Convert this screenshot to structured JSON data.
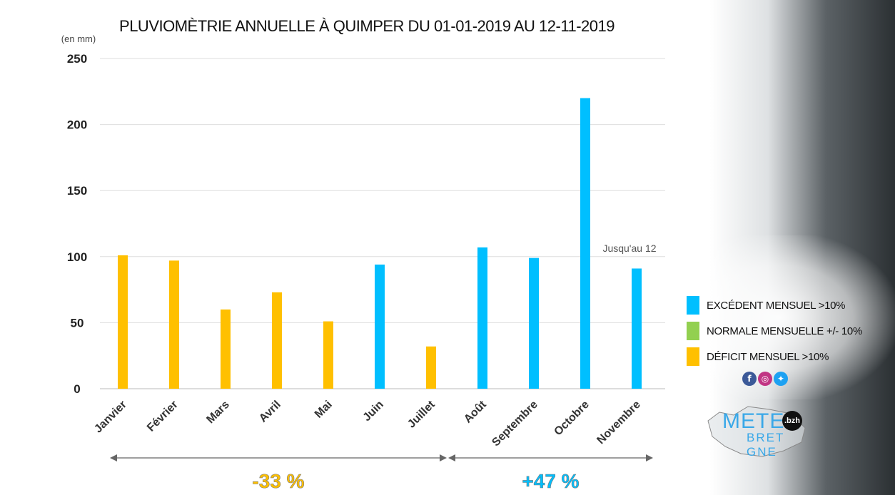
{
  "chart_data": {
    "type": "bar",
    "title": "PLUVIOMÈTRIE ANNUELLE À QUIMPER DU 01-01-2019 AU 12-11-2019",
    "unit_label": "(en mm)",
    "ylim": [
      0,
      250
    ],
    "yticks": [
      0,
      50,
      100,
      150,
      200,
      250
    ],
    "grid": true,
    "categories": [
      "Janvier",
      "Février",
      "Mars",
      "Avril",
      "Mai",
      "Juin",
      "Juillet",
      "Août",
      "Septembre",
      "Octobre",
      "Novembre"
    ],
    "values": [
      101,
      97,
      60,
      73,
      51,
      94,
      32,
      107,
      99,
      220,
      91
    ],
    "bar_classes": [
      "deficit",
      "deficit",
      "deficit",
      "deficit",
      "deficit",
      "excedent",
      "deficit",
      "excedent",
      "excedent",
      "excedent",
      "excedent"
    ],
    "annotation": "Jusqu'au 12",
    "periods": [
      {
        "label": "-33 %",
        "from_category": "Janvier",
        "to_category": "Juillet",
        "color": "#FFC000"
      },
      {
        "label": "+47 %",
        "from_category": "Août",
        "to_category": "Novembre",
        "color": "#00BFFF"
      }
    ]
  },
  "legend": [
    {
      "label": "EXCÉDENT MENSUEL >10%",
      "color": "#00BFFF"
    },
    {
      "label": "NORMALE MENSUELLE +/- 10%",
      "color": "#92D050"
    },
    {
      "label": "DÉFICIT MENSUEL >10%",
      "color": "#FFC000"
    }
  ],
  "colors": {
    "excedent": "#00BFFF",
    "normale": "#92D050",
    "deficit": "#FFC000"
  },
  "social_icons": [
    "facebook-icon",
    "instagram-icon",
    "twitter-icon"
  ],
  "logo": {
    "text_main": "METE",
    "badge": ".bzh",
    "text_sub": "BRET   GNE"
  }
}
